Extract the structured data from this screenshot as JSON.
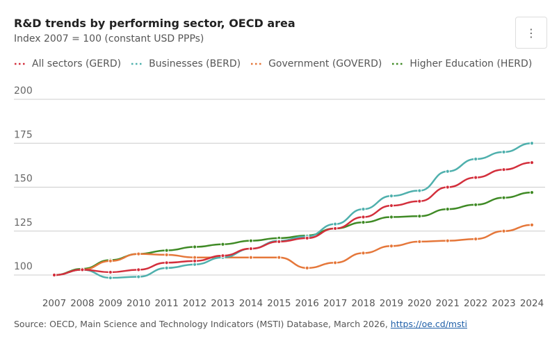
{
  "header": {
    "title": "R&D trends by performing sector, OECD area",
    "subtitle": "Index 2007 = 100 (constant USD PPPs)",
    "menu_icon": "vertical-ellipsis-icon",
    "menu_label": "⋮"
  },
  "chart_data": {
    "type": "line",
    "title": "R&D trends by performing sector, OECD area",
    "subtitle": "Index 2007 = 100 (constant USD PPPs)",
    "x": [
      2007,
      2008,
      2009,
      2010,
      2011,
      2012,
      2013,
      2014,
      2015,
      2016,
      2017,
      2018,
      2019,
      2020,
      2021,
      2022,
      2023,
      2024
    ],
    "ylim": [
      100,
      200
    ],
    "yticks": [
      100,
      125,
      150,
      175,
      200
    ],
    "grid": true,
    "legend_placement": "top-left",
    "series": [
      {
        "name": "All sectors (GERD)",
        "color": "#d32f3c",
        "values": [
          100,
          103,
          101.6,
          103,
          107,
          108,
          111,
          115,
          119,
          121,
          126.5,
          133,
          139.5,
          142,
          150,
          155.5,
          160,
          164
        ]
      },
      {
        "name": "Businesses (BERD)",
        "color": "#4fb0ad",
        "values": [
          100,
          103,
          98.4,
          99,
          104,
          106,
          110,
          115,
          119.5,
          122,
          129,
          137.5,
          145,
          148,
          159,
          166,
          170,
          175
        ]
      },
      {
        "name": "Government (GOVERD)",
        "color": "#e5773a",
        "values": [
          100,
          103,
          108,
          112,
          111.5,
          110,
          110,
          110,
          110,
          104,
          107,
          112.5,
          116.5,
          119,
          119.5,
          120.5,
          125,
          128.5
        ]
      },
      {
        "name": "Higher Education (HERD)",
        "color": "#3f8a25",
        "values": [
          100,
          103.5,
          108.5,
          112,
          114,
          116,
          117.5,
          119.5,
          121,
          122.5,
          126.5,
          130,
          133,
          133.5,
          137.5,
          140,
          144,
          147
        ]
      }
    ]
  },
  "source": {
    "text": "Source: OECD, Main Science and Technology Indicators (MSTI) Database, March 2026, ",
    "link": "https://oe.cd/msti"
  }
}
